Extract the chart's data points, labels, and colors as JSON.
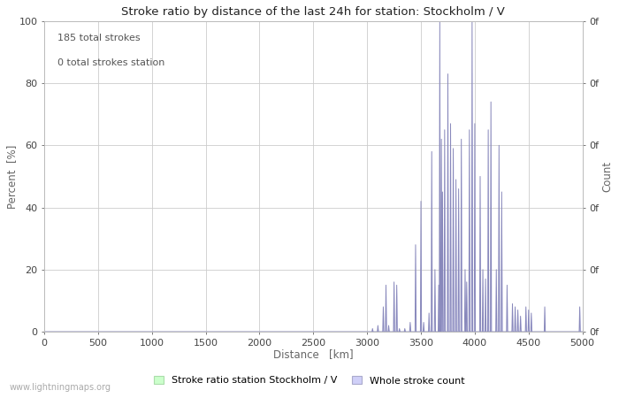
{
  "title": "Stroke ratio by distance of the last 24h for station: Stockholm / V",
  "xlabel": "Distance   [km]",
  "ylabel_left": "Percent  [%]",
  "ylabel_right": "Count",
  "annotation_line1": "185 total strokes",
  "annotation_line2": "0 total strokes station",
  "xlim": [
    0,
    5000
  ],
  "ylim": [
    0,
    100
  ],
  "xticks": [
    0,
    500,
    1000,
    1500,
    2000,
    2500,
    3000,
    3500,
    4000,
    4500,
    5000
  ],
  "yticks_left": [
    0,
    20,
    40,
    60,
    80,
    100
  ],
  "yticks_right_labels": [
    "0f",
    "0f",
    "0f",
    "0f",
    "0f",
    "0f"
  ],
  "background_color": "#ffffff",
  "grid_color": "#cccccc",
  "fill_color_blue": "#d0d0f8",
  "fill_color_green": "#ccffcc",
  "line_color_blue": "#8888bb",
  "line_color_green": "#88cc88",
  "legend_label_green": "Stroke ratio station Stockholm / V",
  "legend_label_blue": "Whole stroke count",
  "watermark": "www.lightningmaps.org",
  "stroke_data": [
    [
      3050,
      1
    ],
    [
      3075,
      0
    ],
    [
      3100,
      2
    ],
    [
      3125,
      0
    ],
    [
      3150,
      8
    ],
    [
      3175,
      15
    ],
    [
      3200,
      2
    ],
    [
      3225,
      0
    ],
    [
      3250,
      16
    ],
    [
      3275,
      15
    ],
    [
      3300,
      1
    ],
    [
      3325,
      0
    ],
    [
      3350,
      1
    ],
    [
      3375,
      0
    ],
    [
      3400,
      3
    ],
    [
      3425,
      0
    ],
    [
      3450,
      28
    ],
    [
      3475,
      0
    ],
    [
      3500,
      42
    ],
    [
      3525,
      3
    ],
    [
      3550,
      0
    ],
    [
      3575,
      6
    ],
    [
      3600,
      58
    ],
    [
      3620,
      0
    ],
    [
      3630,
      20
    ],
    [
      3650,
      0
    ],
    [
      3665,
      15
    ],
    [
      3675,
      100
    ],
    [
      3690,
      62
    ],
    [
      3700,
      45
    ],
    [
      3720,
      65
    ],
    [
      3750,
      83
    ],
    [
      3775,
      67
    ],
    [
      3800,
      59
    ],
    [
      3825,
      49
    ],
    [
      3850,
      46
    ],
    [
      3875,
      62
    ],
    [
      3895,
      0
    ],
    [
      3910,
      20
    ],
    [
      3925,
      16
    ],
    [
      3950,
      65
    ],
    [
      3975,
      100
    ],
    [
      4000,
      67
    ],
    [
      4025,
      0
    ],
    [
      4050,
      50
    ],
    [
      4060,
      0
    ],
    [
      4075,
      20
    ],
    [
      4100,
      17
    ],
    [
      4125,
      65
    ],
    [
      4150,
      74
    ],
    [
      4175,
      0
    ],
    [
      4200,
      20
    ],
    [
      4225,
      60
    ],
    [
      4250,
      45
    ],
    [
      4275,
      0
    ],
    [
      4300,
      15
    ],
    [
      4325,
      0
    ],
    [
      4350,
      9
    ],
    [
      4375,
      8
    ],
    [
      4400,
      7
    ],
    [
      4425,
      5
    ],
    [
      4450,
      0
    ],
    [
      4475,
      8
    ],
    [
      4500,
      7
    ],
    [
      4525,
      6
    ],
    [
      4550,
      0
    ],
    [
      4575,
      0
    ],
    [
      4600,
      0
    ],
    [
      4625,
      0
    ],
    [
      4650,
      8
    ],
    [
      4675,
      0
    ],
    [
      4700,
      0
    ],
    [
      4725,
      0
    ],
    [
      4750,
      0
    ],
    [
      4775,
      0
    ],
    [
      4800,
      0
    ],
    [
      4825,
      0
    ],
    [
      4850,
      0
    ],
    [
      4875,
      0
    ],
    [
      4900,
      0
    ],
    [
      4925,
      0
    ],
    [
      4975,
      8
    ],
    [
      5000,
      0
    ]
  ]
}
